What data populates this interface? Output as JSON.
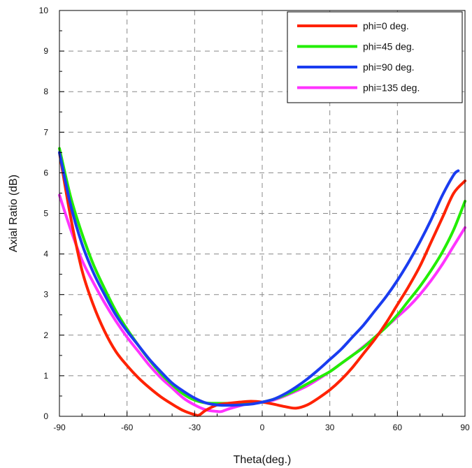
{
  "chart_data": {
    "type": "line",
    "title": "",
    "xlabel": "Theta(deg.)",
    "ylabel": "Axial Ratio (dB)",
    "xlim": [
      -90,
      90
    ],
    "ylim": [
      0,
      10
    ],
    "xticks": [
      -90,
      -60,
      -30,
      0,
      30,
      60,
      90
    ],
    "yticks": [
      0,
      1,
      2,
      3,
      4,
      5,
      6,
      7,
      8,
      9,
      10
    ],
    "grid": true,
    "legend": "top-right",
    "series": [
      {
        "name": "phi=0 deg.",
        "color": "#ff2200",
        "x": [
          -90,
          -85,
          -80,
          -75,
          -70,
          -65,
          -60,
          -55,
          -50,
          -45,
          -40,
          -35,
          -30,
          -28,
          -25,
          -20,
          -15,
          -10,
          -5,
          0,
          5,
          10,
          15,
          20,
          25,
          30,
          35,
          40,
          45,
          50,
          55,
          60,
          65,
          70,
          75,
          80,
          85,
          90
        ],
        "y": [
          6.5,
          4.9,
          3.6,
          2.75,
          2.1,
          1.6,
          1.25,
          0.95,
          0.7,
          0.48,
          0.3,
          0.14,
          0.04,
          0.03,
          0.15,
          0.28,
          0.32,
          0.35,
          0.37,
          0.35,
          0.3,
          0.24,
          0.2,
          0.28,
          0.45,
          0.65,
          0.9,
          1.2,
          1.55,
          1.9,
          2.3,
          2.75,
          3.2,
          3.7,
          4.3,
          4.9,
          5.5,
          5.8
        ]
      },
      {
        "name": "phi=45 deg.",
        "color": "#22ee00",
        "x": [
          -90,
          -85,
          -80,
          -75,
          -70,
          -65,
          -60,
          -55,
          -50,
          -45,
          -40,
          -35,
          -30,
          -25,
          -20,
          -15,
          -10,
          -5,
          0,
          5,
          10,
          15,
          20,
          25,
          30,
          35,
          40,
          45,
          50,
          55,
          60,
          65,
          70,
          75,
          80,
          85,
          90
        ],
        "y": [
          6.6,
          5.4,
          4.5,
          3.75,
          3.15,
          2.6,
          2.15,
          1.75,
          1.38,
          1.05,
          0.78,
          0.55,
          0.4,
          0.33,
          0.32,
          0.32,
          0.33,
          0.34,
          0.35,
          0.42,
          0.52,
          0.65,
          0.8,
          0.95,
          1.1,
          1.3,
          1.5,
          1.7,
          1.95,
          2.2,
          2.5,
          2.85,
          3.2,
          3.6,
          4.05,
          4.6,
          5.3
        ]
      },
      {
        "name": "phi=90 deg.",
        "color": "#1a3cf0",
        "x": [
          -90,
          -85,
          -80,
          -75,
          -70,
          -65,
          -60,
          -55,
          -50,
          -45,
          -40,
          -35,
          -30,
          -25,
          -20,
          -15,
          -10,
          -5,
          0,
          5,
          10,
          15,
          20,
          25,
          30,
          35,
          40,
          45,
          50,
          55,
          60,
          65,
          70,
          75,
          80,
          85,
          87
        ],
        "y": [
          6.5,
          5.2,
          4.25,
          3.55,
          3.0,
          2.5,
          2.1,
          1.75,
          1.4,
          1.1,
          0.82,
          0.62,
          0.45,
          0.33,
          0.28,
          0.27,
          0.28,
          0.3,
          0.35,
          0.42,
          0.55,
          0.72,
          0.92,
          1.15,
          1.4,
          1.65,
          1.95,
          2.25,
          2.6,
          2.95,
          3.35,
          3.8,
          4.3,
          4.85,
          5.45,
          5.95,
          6.05
        ]
      },
      {
        "name": "phi=135 deg.",
        "color": "#ff33ff",
        "x": [
          -90,
          -85,
          -80,
          -75,
          -70,
          -65,
          -60,
          -55,
          -50,
          -45,
          -40,
          -35,
          -30,
          -25,
          -20,
          -18,
          -15,
          -10,
          -5,
          0,
          5,
          10,
          15,
          20,
          25,
          30,
          35,
          40,
          45,
          50,
          55,
          60,
          65,
          70,
          75,
          80,
          85,
          90
        ],
        "y": [
          5.45,
          4.6,
          3.85,
          3.3,
          2.8,
          2.35,
          1.95,
          1.6,
          1.25,
          0.95,
          0.7,
          0.45,
          0.28,
          0.16,
          0.12,
          0.12,
          0.18,
          0.26,
          0.33,
          0.35,
          0.4,
          0.5,
          0.62,
          0.75,
          0.92,
          1.1,
          1.3,
          1.5,
          1.72,
          1.95,
          2.2,
          2.45,
          2.7,
          3.0,
          3.35,
          3.75,
          4.2,
          4.65
        ]
      }
    ]
  }
}
